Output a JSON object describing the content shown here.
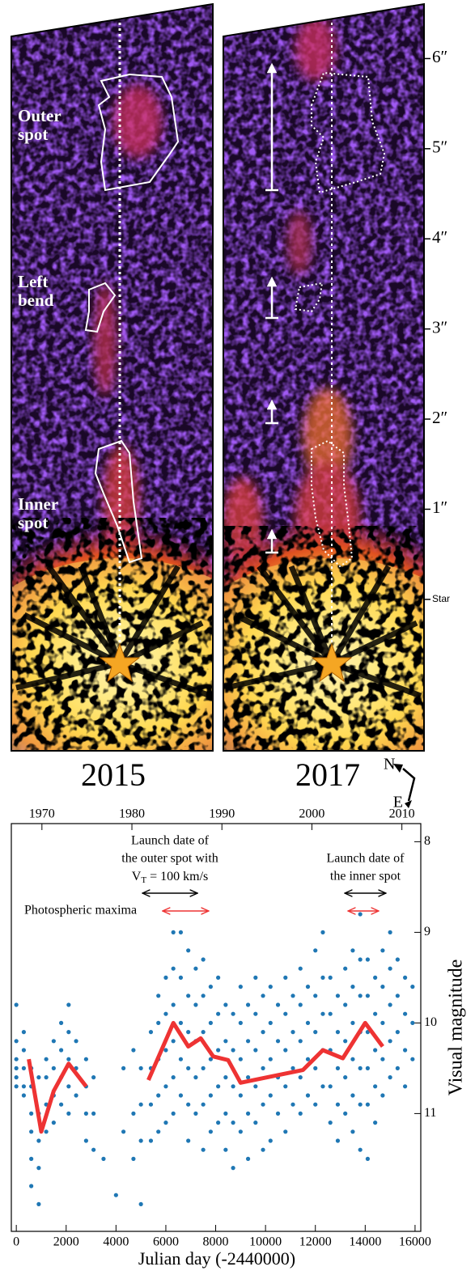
{
  "chart_data": [
    {
      "type": "image-panels",
      "panels": [
        {
          "year": "2015",
          "labels": [
            [
              "Outer",
              "spot"
            ],
            [
              "Left",
              "bend"
            ],
            [
              "Inner",
              "spot"
            ]
          ]
        },
        {
          "year": "2017"
        }
      ],
      "ylim": [
        -1.68,
        6.65
      ],
      "yticks": [
        {
          "value": 0,
          "label": "Star"
        },
        {
          "value": 1,
          "label": "1″"
        },
        {
          "value": 2,
          "label": "2″"
        },
        {
          "value": 3,
          "label": "3″"
        },
        {
          "value": 4,
          "label": "4″"
        },
        {
          "value": 5,
          "label": "5″"
        },
        {
          "value": 6,
          "label": "6″"
        }
      ],
      "compass": [
        "N",
        "E"
      ]
    },
    {
      "type": "scatter",
      "xlabel": "Julian day (-2440000)",
      "ylabel": "Visual magnitude",
      "xlim": [
        -200,
        16230
      ],
      "xticks": [
        0,
        2000,
        4000,
        6000,
        8000,
        10000,
        12000,
        14000,
        16000
      ],
      "x2lim": [
        1966.6,
        2012.1
      ],
      "x2ticks": [
        1970,
        1980,
        1990,
        2000,
        2010
      ],
      "ylim": [
        12.3,
        7.8
      ],
      "yticks": [
        8,
        9,
        10,
        11
      ],
      "color": "#1f77b4",
      "x": [
        0,
        0,
        0,
        0,
        0,
        0,
        300,
        300,
        300,
        300,
        300,
        600,
        600,
        600,
        600,
        600,
        600,
        900,
        900,
        900,
        900,
        900,
        1200,
        1200,
        1200,
        1200,
        1500,
        1500,
        1500,
        1500,
        1800,
        1800,
        1800,
        1800,
        2100,
        2100,
        2100,
        2100,
        2100,
        2400,
        2400,
        2400,
        2800,
        2800,
        2800,
        2800,
        3100,
        3100,
        3100,
        3500,
        4000,
        4300,
        4300,
        4700,
        4700,
        4700,
        5000,
        5000,
        5000,
        5000,
        5400,
        5400,
        5400,
        5400,
        5700,
        5700,
        5700,
        5700,
        5700,
        6000,
        6000,
        6000,
        6000,
        6000,
        6300,
        6300,
        6300,
        6300,
        6300,
        6300,
        6600,
        6600,
        6600,
        6600,
        6600,
        6900,
        6900,
        6900,
        6900,
        6900,
        6900,
        7200,
        7200,
        7200,
        7200,
        7200,
        7500,
        7500,
        7500,
        7500,
        7500,
        7500,
        7800,
        7800,
        7800,
        7800,
        7800,
        8100,
        8100,
        8100,
        8100,
        8100,
        8400,
        8400,
        8400,
        8400,
        8400,
        8700,
        8700,
        8700,
        8700,
        8700,
        9000,
        9000,
        9000,
        9000,
        9000,
        9300,
        9300,
        9300,
        9300,
        9300,
        9600,
        9600,
        9600,
        9600,
        9600,
        9900,
        9900,
        9900,
        9900,
        9900,
        10200,
        10200,
        10200,
        10200,
        10200,
        10500,
        10500,
        10500,
        10500,
        10800,
        10800,
        10800,
        10800,
        10800,
        11100,
        11100,
        11100,
        11100,
        11400,
        11400,
        11400,
        11400,
        11400,
        11700,
        11700,
        11700,
        11700,
        12000,
        12000,
        12000,
        12000,
        12000,
        12300,
        12300,
        12300,
        12300,
        12300,
        12600,
        12600,
        12600,
        12600,
        12600,
        12900,
        12900,
        12900,
        12900,
        12900,
        13200,
        13200,
        13200,
        13200,
        13200,
        13500,
        13500,
        13500,
        13500,
        13500,
        13500,
        13800,
        13800,
        13800,
        13800,
        13800,
        13800,
        13800,
        14100,
        14100,
        14100,
        14100,
        14100,
        14100,
        14400,
        14400,
        14400,
        14400,
        14400,
        14700,
        14700,
        14700,
        14700,
        14700,
        15000,
        15000,
        15000,
        15000,
        15000,
        15300,
        15300,
        15300,
        15300,
        15600,
        15600,
        15600,
        15600,
        15900,
        15900,
        15900
      ],
      "values": [
        9.8,
        10.2,
        10.4,
        10.5,
        10.6,
        10.7,
        10.1,
        10.3,
        10.5,
        10.7,
        10.8,
        10.5,
        10.7,
        11.0,
        11.2,
        11.5,
        11.8,
        10.6,
        11.0,
        11.3,
        11.6,
        12.0,
        10.4,
        10.6,
        10.9,
        11.2,
        10.2,
        10.5,
        10.8,
        11.1,
        10.0,
        10.3,
        10.6,
        10.9,
        9.8,
        10.1,
        10.4,
        10.7,
        11.0,
        10.2,
        10.5,
        10.8,
        10.4,
        10.7,
        11.0,
        11.3,
        10.6,
        11.0,
        11.4,
        11.5,
        11.9,
        10.5,
        11.2,
        10.3,
        11.0,
        11.5,
        10.5,
        10.9,
        11.3,
        12.0,
        10.1,
        10.5,
        10.9,
        11.3,
        9.7,
        10.0,
        10.4,
        10.8,
        11.2,
        9.5,
        9.9,
        10.3,
        10.7,
        11.1,
        9.0,
        9.4,
        9.8,
        10.2,
        10.6,
        11.0,
        9.0,
        9.5,
        10.0,
        10.4,
        10.8,
        9.2,
        9.7,
        10.1,
        10.5,
        10.9,
        11.3,
        9.4,
        9.8,
        10.2,
        10.6,
        11.0,
        9.3,
        9.7,
        10.1,
        10.5,
        10.9,
        11.4,
        9.6,
        10.0,
        10.4,
        10.8,
        11.2,
        9.5,
        9.9,
        10.3,
        10.7,
        11.1,
        9.8,
        10.2,
        10.6,
        11.0,
        11.4,
        9.9,
        10.3,
        10.7,
        11.1,
        11.6,
        9.6,
        10.0,
        10.4,
        10.8,
        11.2,
        9.8,
        10.2,
        10.6,
        11.0,
        11.5,
        9.5,
        9.9,
        10.3,
        10.7,
        11.1,
        9.7,
        10.1,
        10.5,
        10.9,
        11.4,
        9.6,
        10.0,
        10.4,
        10.8,
        11.3,
        9.8,
        10.2,
        10.6,
        11.0,
        9.5,
        9.9,
        10.3,
        10.7,
        11.2,
        9.7,
        10.1,
        10.5,
        10.9,
        9.4,
        9.8,
        10.2,
        10.6,
        11.0,
        9.6,
        10.0,
        10.4,
        10.8,
        9.2,
        9.7,
        10.1,
        10.5,
        10.9,
        9.0,
        9.5,
        9.9,
        10.3,
        10.7,
        9.5,
        9.9,
        10.3,
        10.7,
        11.1,
        9.7,
        10.1,
        10.5,
        10.9,
        11.3,
        9.4,
        9.8,
        10.2,
        10.6,
        11.0,
        9.2,
        9.6,
        10.0,
        10.4,
        10.8,
        11.2,
        8.8,
        9.3,
        9.7,
        10.1,
        10.5,
        10.9,
        11.4,
        9.3,
        9.7,
        10.1,
        10.5,
        10.9,
        11.5,
        9.5,
        9.9,
        10.3,
        10.7,
        11.1,
        9.2,
        9.6,
        10.0,
        10.4,
        10.8,
        9.0,
        9.4,
        9.8,
        10.2,
        10.6,
        9.3,
        9.7,
        10.1,
        10.5,
        9.5,
        9.9,
        10.3,
        10.7,
        9.6,
        10.0,
        10.4
      ],
      "line": {
        "color": "#ee3333",
        "x": [
          500,
          1000,
          1500,
          2100,
          2800,
          null,
          5300,
          6300,
          6900,
          7400,
          7900,
          8500,
          9000,
          11500,
          12300,
          13100,
          14000,
          14700
        ],
        "values": [
          10.4,
          11.2,
          10.75,
          10.45,
          10.7,
          null,
          10.63,
          10.0,
          10.26,
          10.17,
          10.37,
          10.41,
          10.66,
          10.52,
          10.3,
          10.39,
          10.0,
          10.26
        ]
      },
      "annotations": [
        {
          "lines": [
            "Launch date of",
            "the outer spot with"
          ],
          "velocity": {
            "symbol": "V",
            "subscript": "T",
            "text": " = 100 km/s"
          },
          "range": [
            5060,
            7270
          ],
          "maxima_range": [
            5870,
            7720
          ]
        },
        {
          "lines": [
            "Launch date of",
            "the inner spot"
          ],
          "range": [
            13180,
            14830
          ],
          "maxima_range": [
            13310,
            14540
          ]
        }
      ],
      "maxima_label": "Photospheric maxima"
    }
  ]
}
